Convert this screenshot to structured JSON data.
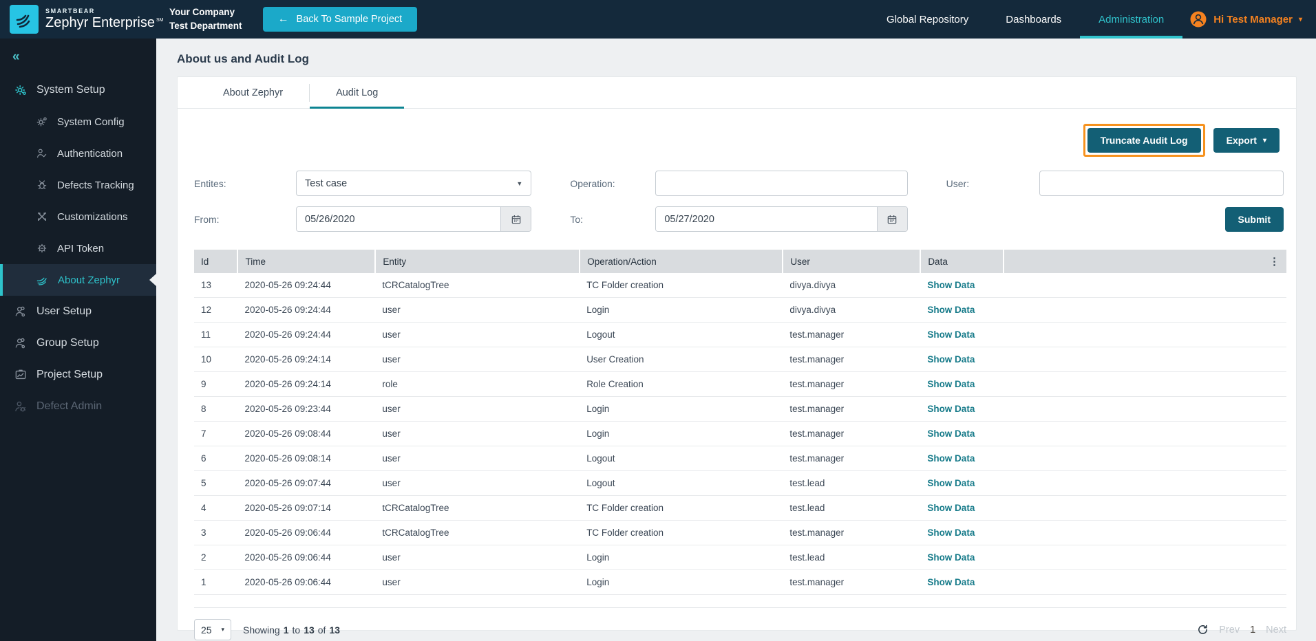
{
  "topbar": {
    "brand_small": "SMARTBEAR",
    "brand_name": "Zephyr Enterprise",
    "brand_mark": "SM",
    "company": "Your Company",
    "department": "Test Department",
    "back_arrow": "←",
    "back_label": "Back To Sample Project",
    "nav": [
      {
        "label": "Global Repository",
        "active": false
      },
      {
        "label": "Dashboards",
        "active": false
      },
      {
        "label": "Administration",
        "active": true
      }
    ],
    "user_greeting": "Hi Test Manager",
    "user_caret": "▾",
    "colors": {
      "bar_bg": "#14293b",
      "accent_teal": "#30c3cc",
      "accent_orange": "#f58220",
      "back_button": "#1ba9c9",
      "logo_cyan": "#27c4e4"
    }
  },
  "sidebar": {
    "collapse_icon": "«",
    "items": [
      {
        "label": "System Setup"
      },
      {
        "label": "System Config"
      },
      {
        "label": "Authentication"
      },
      {
        "label": "Defects Tracking"
      },
      {
        "label": "Customizations"
      },
      {
        "label": "API Token"
      },
      {
        "label": "About Zephyr",
        "active": true
      },
      {
        "label": "User Setup"
      },
      {
        "label": "Group Setup"
      },
      {
        "label": "Project Setup"
      },
      {
        "label": "Defect Admin",
        "disabled": true
      }
    ]
  },
  "page": {
    "title": "About us and Audit Log"
  },
  "tabs": [
    {
      "label": "About Zephyr",
      "active": false
    },
    {
      "label": "Audit Log",
      "active": true
    }
  ],
  "actions": {
    "truncate_label": "Truncate Audit Log",
    "export_label": "Export",
    "export_caret": "▾",
    "submit_label": "Submit",
    "button_color": "#135f75",
    "highlight_border": "#f6921e"
  },
  "filters": {
    "entities_label": "Entites:",
    "entities_value": "Test case",
    "entities_caret": "▼",
    "operation_label": "Operation:",
    "operation_value": "",
    "user_label": "User:",
    "user_value": "",
    "from_label": "From:",
    "from_value": "05/26/2020",
    "to_label": "To:",
    "to_value": "05/27/2020"
  },
  "table": {
    "columns": [
      "Id",
      "Time",
      "Entity",
      "Operation/Action",
      "User",
      "Data"
    ],
    "kebab_icon": "⋮",
    "show_data_label": "Show Data",
    "link_color": "#177b8a",
    "rows": [
      {
        "id": "13",
        "time": "2020-05-26 09:24:44",
        "entity": "tCRCatalogTree",
        "operation": "TC Folder creation",
        "user": "divya.divya"
      },
      {
        "id": "12",
        "time": "2020-05-26 09:24:44",
        "entity": "user",
        "operation": "Login",
        "user": "divya.divya"
      },
      {
        "id": "11",
        "time": "2020-05-26 09:24:44",
        "entity": "user",
        "operation": "Logout",
        "user": "test.manager"
      },
      {
        "id": "10",
        "time": "2020-05-26 09:24:14",
        "entity": "user",
        "operation": "User Creation",
        "user": "test.manager"
      },
      {
        "id": "9",
        "time": "2020-05-26 09:24:14",
        "entity": "role",
        "operation": "Role Creation",
        "user": "test.manager"
      },
      {
        "id": "8",
        "time": "2020-05-26 09:23:44",
        "entity": "user",
        "operation": "Login",
        "user": "test.manager"
      },
      {
        "id": "7",
        "time": "2020-05-26 09:08:44",
        "entity": "user",
        "operation": "Login",
        "user": "test.manager"
      },
      {
        "id": "6",
        "time": "2020-05-26 09:08:14",
        "entity": "user",
        "operation": "Logout",
        "user": "test.manager"
      },
      {
        "id": "5",
        "time": "2020-05-26 09:07:44",
        "entity": "user",
        "operation": "Logout",
        "user": "test.lead"
      },
      {
        "id": "4",
        "time": "2020-05-26 09:07:14",
        "entity": "tCRCatalogTree",
        "operation": "TC Folder creation",
        "user": "test.lead"
      },
      {
        "id": "3",
        "time": "2020-05-26 09:06:44",
        "entity": "tCRCatalogTree",
        "operation": "TC Folder creation",
        "user": "test.manager"
      },
      {
        "id": "2",
        "time": "2020-05-26 09:06:44",
        "entity": "user",
        "operation": "Login",
        "user": "test.lead"
      },
      {
        "id": "1",
        "time": "2020-05-26 09:06:44",
        "entity": "user",
        "operation": "Login",
        "user": "test.manager"
      }
    ]
  },
  "pagination": {
    "page_size": "25",
    "size_caret": "▾",
    "showing_word": "Showing",
    "from": "1",
    "to_word": "to",
    "to": "13",
    "of_word": "of",
    "total": "13",
    "prev": "Prev",
    "current": "1",
    "next": "Next"
  }
}
